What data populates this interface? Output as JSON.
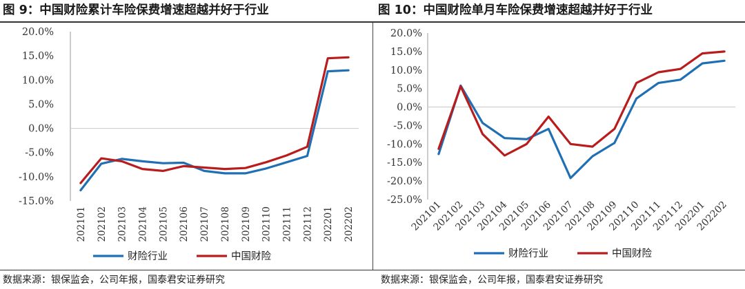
{
  "left": {
    "title": "图 9：中国财险累计车险保费增速超越并好于行业",
    "source": "数据来源：银保监会，公司年报，国泰君安证券研究"
  },
  "right": {
    "title": "图 10：中国财险单月车险保费增速超越并好于行业",
    "source": "数据来源：银保监会，公司年报，国泰君安证券研究"
  },
  "chart_data": [
    {
      "type": "line",
      "title": "图 9：中国财险累计车险保费增速超越并好于行业",
      "categories": [
        "202101",
        "202102",
        "202103",
        "202104",
        "202105",
        "202106",
        "202107",
        "202108",
        "202109",
        "202110",
        "202111",
        "202112",
        "202201",
        "202202"
      ],
      "ylim": [
        -15,
        20
      ],
      "yticks": [
        -15,
        -10,
        -5,
        0,
        5,
        10,
        15,
        20
      ],
      "grid": false,
      "legend": "bottom",
      "series": [
        {
          "name": "财险行业",
          "color": "#1f6fb4",
          "values": [
            -12.8,
            -7.3,
            -6.3,
            -6.8,
            -7.2,
            -7.1,
            -8.8,
            -9.3,
            -9.3,
            -8.3,
            -7.0,
            -5.7,
            11.8,
            12.0
          ]
        },
        {
          "name": "中国财险",
          "color": "#b81c1c",
          "values": [
            -11.3,
            -6.2,
            -6.8,
            -8.4,
            -8.8,
            -7.8,
            -8.1,
            -8.4,
            -8.2,
            -7.0,
            -5.6,
            -3.8,
            14.5,
            14.7
          ]
        }
      ]
    },
    {
      "type": "line",
      "title": "图 10：中国财险单月车险保费增速超越并好于行业",
      "categories": [
        "202101",
        "202102",
        "202103",
        "202104",
        "202105",
        "202106",
        "202107",
        "202108",
        "202109",
        "202110",
        "202111",
        "202112",
        "202201",
        "202202"
      ],
      "ylim": [
        -25,
        20
      ],
      "yticks": [
        -25,
        -20,
        -15,
        -10,
        -5,
        0,
        5,
        10,
        15,
        20
      ],
      "grid": false,
      "legend": "bottom",
      "series": [
        {
          "name": "财险行业",
          "color": "#1f6fb4",
          "values": [
            -12.7,
            5.8,
            -4.3,
            -8.4,
            -8.7,
            -5.9,
            -19.2,
            -13.3,
            -9.7,
            2.3,
            6.5,
            7.4,
            11.8,
            12.5
          ]
        },
        {
          "name": "中国财险",
          "color": "#b81c1c",
          "values": [
            -11.3,
            5.6,
            -7.3,
            -13.1,
            -10.0,
            -2.6,
            -10.0,
            -10.7,
            -5.9,
            6.5,
            9.4,
            10.3,
            14.5,
            15.0
          ]
        }
      ]
    }
  ]
}
